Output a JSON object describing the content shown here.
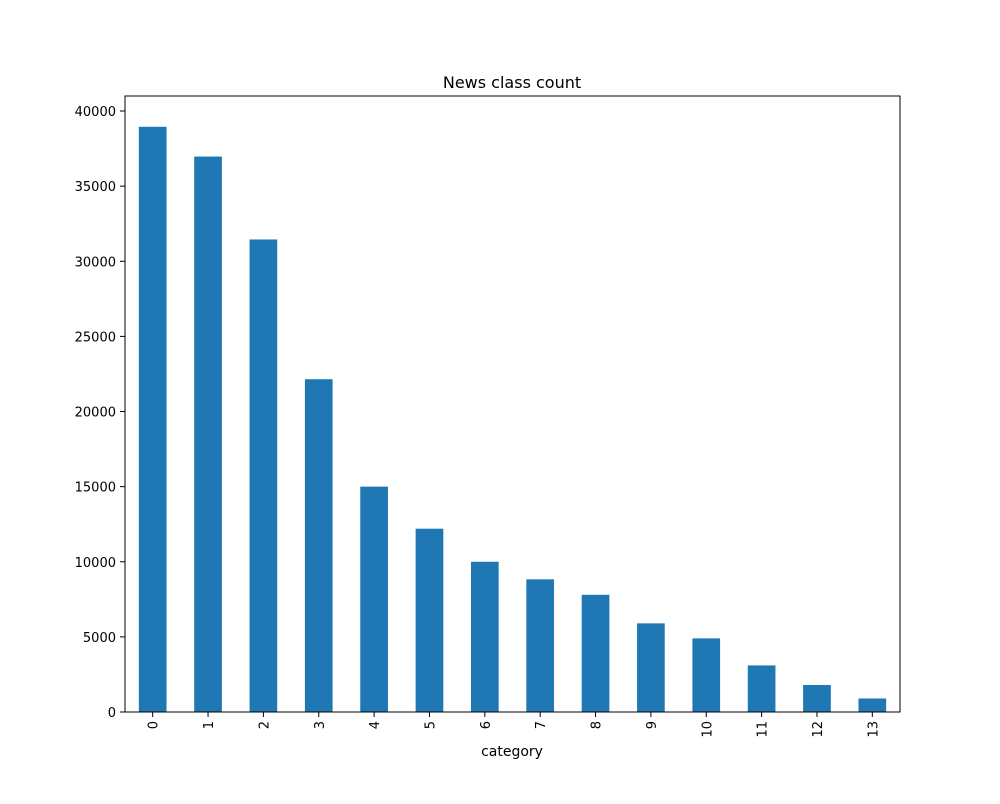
{
  "chart_data": {
    "type": "bar",
    "title": "News class count",
    "xlabel": "category",
    "ylabel": "",
    "categories": [
      "0",
      "1",
      "2",
      "3",
      "4",
      "5",
      "6",
      "7",
      "8",
      "9",
      "10",
      "11",
      "12",
      "13"
    ],
    "values": [
      38950,
      36970,
      31450,
      22150,
      15000,
      12200,
      10000,
      8830,
      7800,
      5900,
      4900,
      3100,
      1800,
      900
    ],
    "ylim": [
      0,
      41000
    ],
    "yticks": [
      0,
      5000,
      10000,
      15000,
      20000,
      25000,
      30000,
      35000,
      40000
    ],
    "grid": false,
    "legend": "none",
    "bar_color": "#1f77b4",
    "x_tick_rotation": "vertical"
  }
}
